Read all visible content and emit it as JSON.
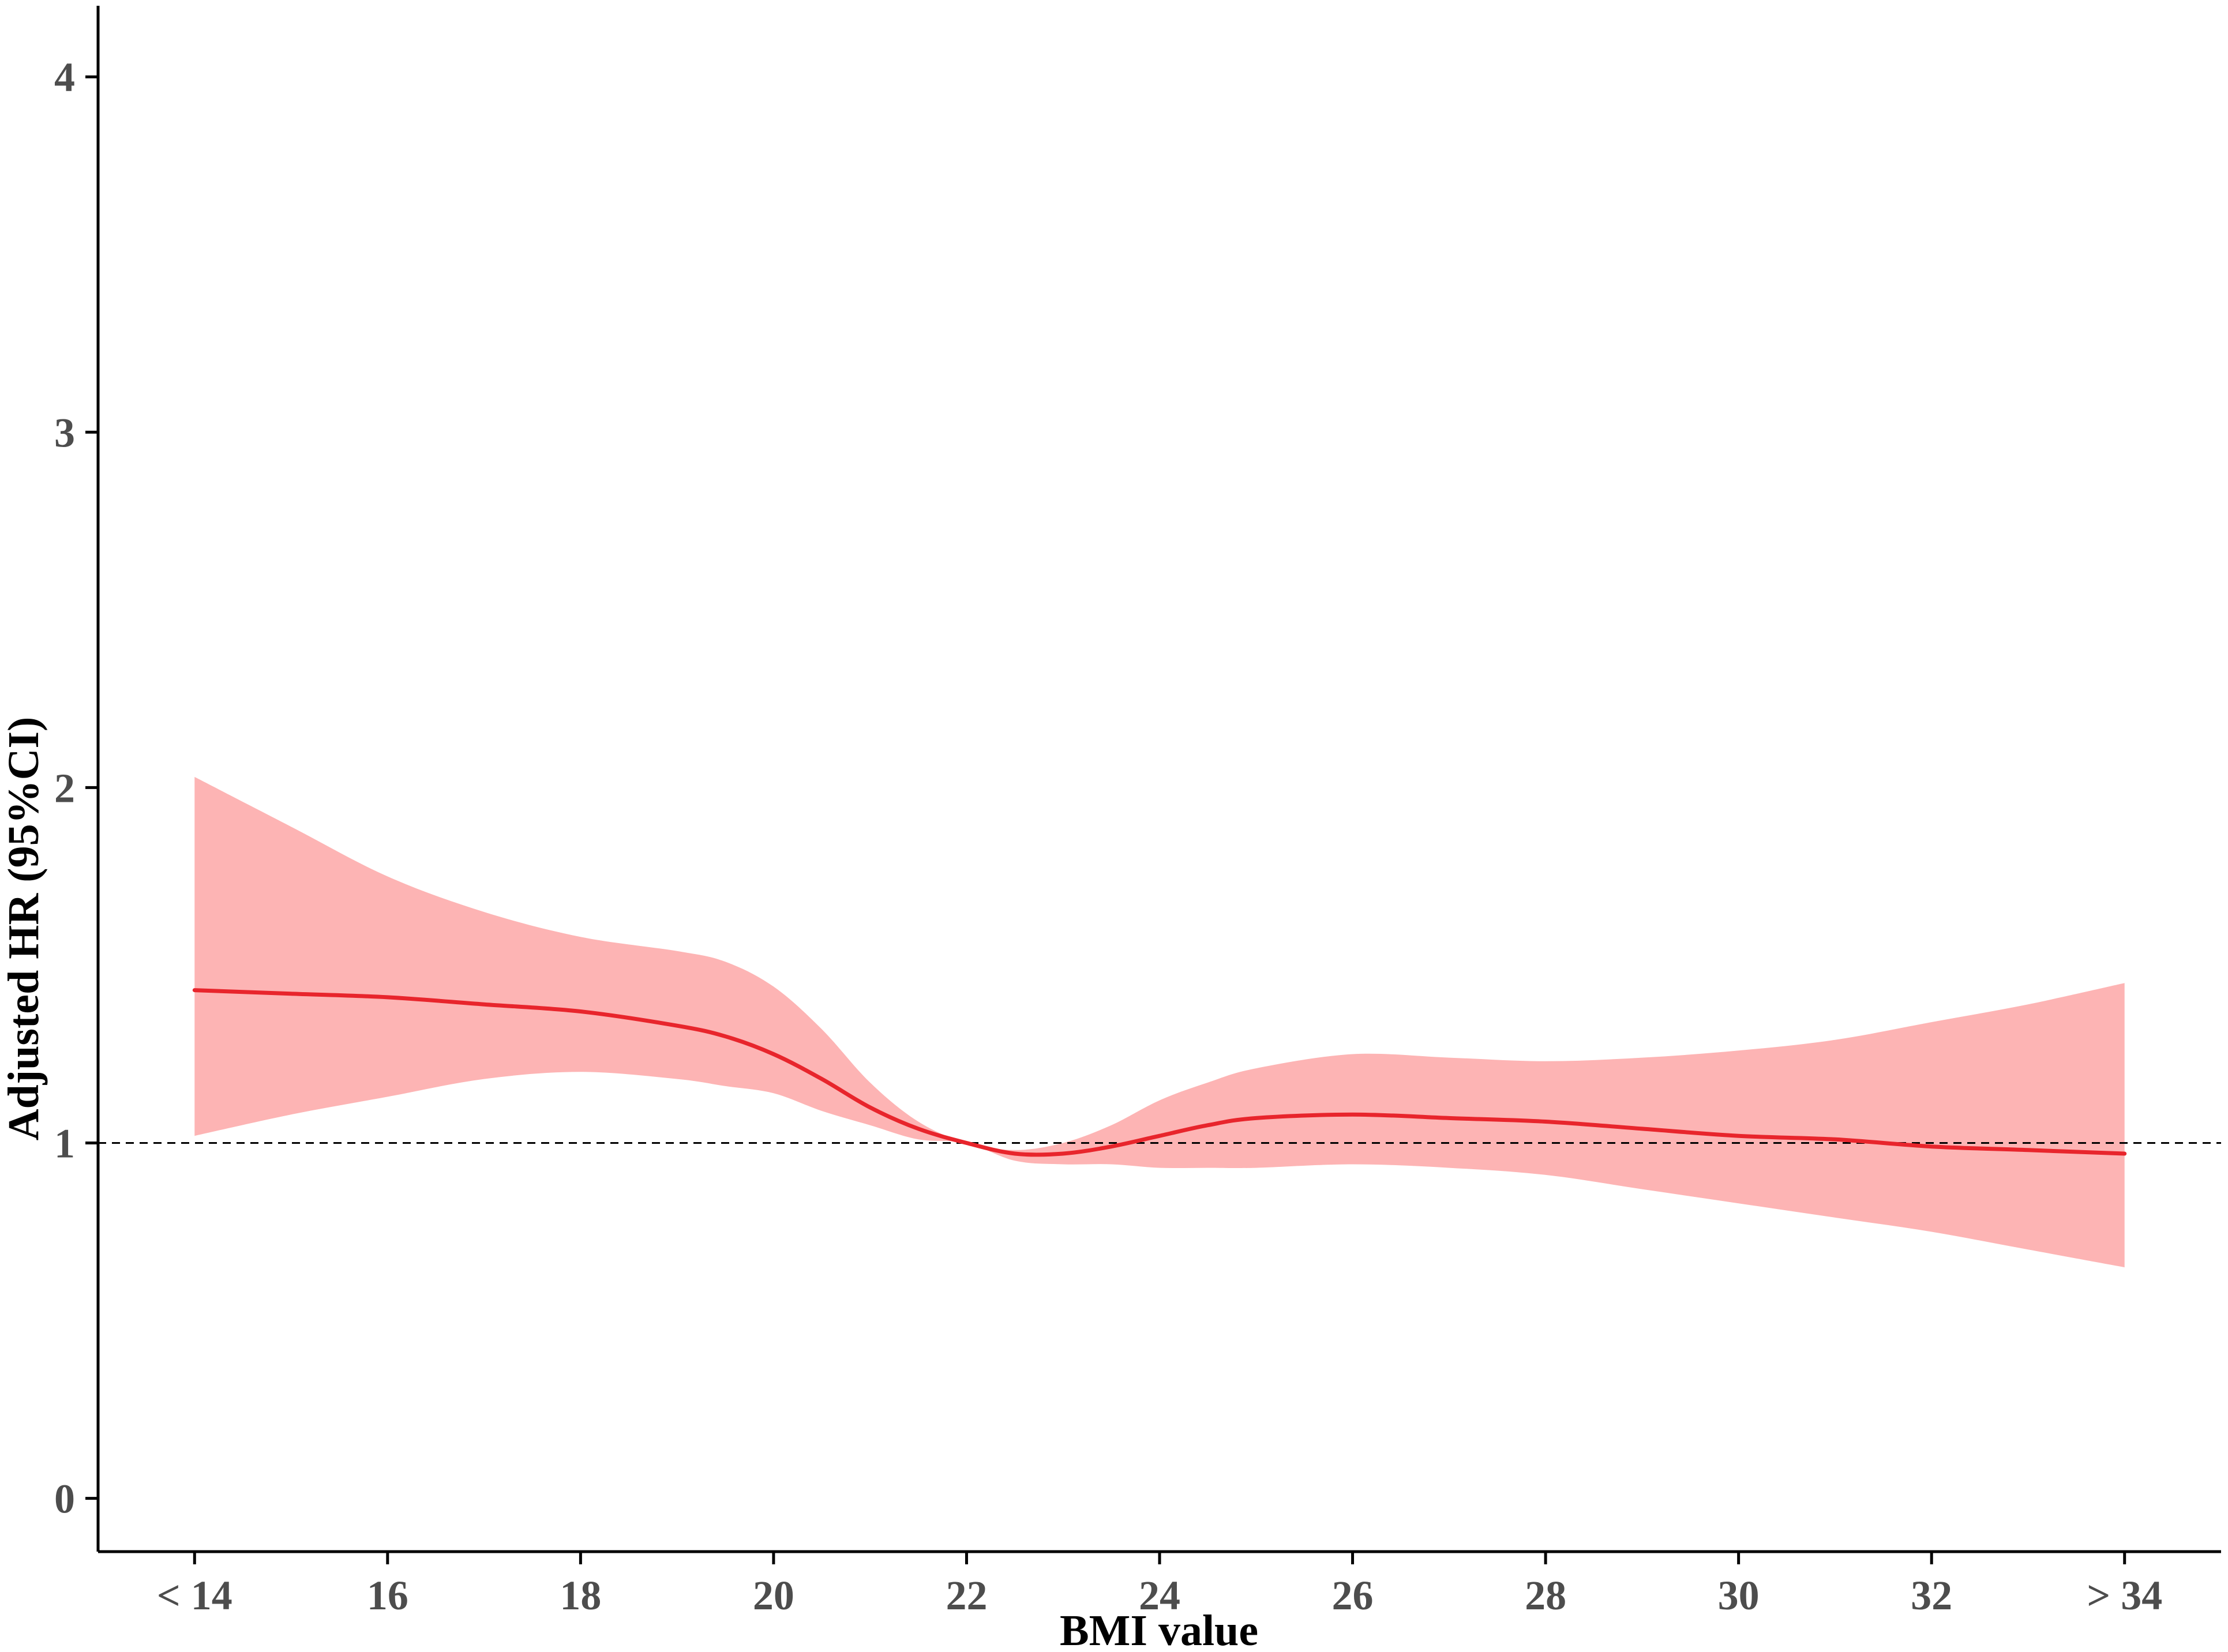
{
  "chart_data": {
    "type": "line",
    "xlabel": "BMI value",
    "ylabel": "Adjusted HR (95%CI)",
    "xlim": [
      13,
      35
    ],
    "ylim": [
      -0.15,
      4.2
    ],
    "x_ticks": [
      {
        "value": 14,
        "label": "< 14"
      },
      {
        "value": 16,
        "label": "16"
      },
      {
        "value": 18,
        "label": "18"
      },
      {
        "value": 20,
        "label": "20"
      },
      {
        "value": 22,
        "label": "22"
      },
      {
        "value": 24,
        "label": "24"
      },
      {
        "value": 26,
        "label": "26"
      },
      {
        "value": 28,
        "label": "28"
      },
      {
        "value": 30,
        "label": "30"
      },
      {
        "value": 32,
        "label": "32"
      },
      {
        "value": 34,
        "label": "> 34"
      }
    ],
    "y_ticks": [
      {
        "value": 0,
        "label": "0"
      },
      {
        "value": 1,
        "label": "1"
      },
      {
        "value": 2,
        "label": "2"
      },
      {
        "value": 3,
        "label": "3"
      },
      {
        "value": 4,
        "label": "4"
      }
    ],
    "reference_line": {
      "y": 1,
      "style": "dashed"
    },
    "grid": false,
    "legend": "none",
    "series": [
      {
        "x": [
          14,
          15,
          16,
          17,
          18,
          19,
          19.5,
          20,
          20.5,
          21,
          21.5,
          22,
          22.5,
          23,
          23.5,
          24,
          24.5,
          25,
          26,
          27,
          28,
          29,
          30,
          31,
          32,
          33,
          34
        ],
        "y": [
          1.43,
          1.42,
          1.41,
          1.39,
          1.37,
          1.33,
          1.3,
          1.25,
          1.18,
          1.1,
          1.04,
          1.0,
          0.97,
          0.97,
          0.99,
          1.02,
          1.05,
          1.07,
          1.08,
          1.07,
          1.06,
          1.04,
          1.02,
          1.01,
          0.99,
          0.98,
          0.97
        ],
        "lower": [
          1.02,
          1.08,
          1.13,
          1.18,
          1.2,
          1.18,
          1.16,
          1.14,
          1.09,
          1.05,
          1.01,
          1.0,
          0.95,
          0.94,
          0.94,
          0.93,
          0.93,
          0.93,
          0.94,
          0.93,
          0.91,
          0.87,
          0.83,
          0.79,
          0.75,
          0.7,
          0.65
        ],
        "upper": [
          2.03,
          1.89,
          1.75,
          1.65,
          1.58,
          1.54,
          1.51,
          1.44,
          1.32,
          1.17,
          1.06,
          1.0,
          0.98,
          1.0,
          1.05,
          1.12,
          1.17,
          1.21,
          1.25,
          1.24,
          1.23,
          1.24,
          1.26,
          1.29,
          1.34,
          1.39,
          1.45
        ]
      }
    ],
    "colors": {
      "line": "#e8252c",
      "band": "#fdb4b4",
      "reference": "#000000",
      "axis": "#000000",
      "tick_text": "#4d4d4d"
    }
  }
}
